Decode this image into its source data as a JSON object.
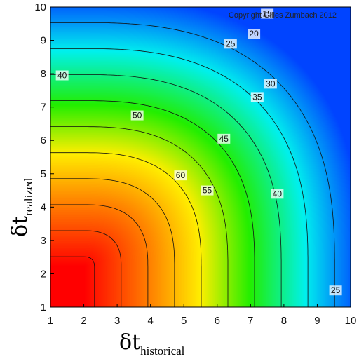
{
  "chart_data": {
    "type": "heatmap",
    "subtype": "filled-contour",
    "x_axis": {
      "label_symbol": "δt",
      "label_subscript": "historical",
      "range": [
        1,
        10
      ],
      "ticks": [
        "1",
        "2",
        "3",
        "4",
        "5",
        "6",
        "7",
        "8",
        "9",
        "10"
      ]
    },
    "y_axis": {
      "label_symbol": "δt",
      "label_subscript": "realized",
      "range": [
        1,
        10
      ],
      "ticks": [
        "1",
        "2",
        "3",
        "4",
        "5",
        "6",
        "7",
        "8",
        "9",
        "10"
      ]
    },
    "annotation": "Copyright Gilles Zumbach 2012",
    "contour_levels": [
      15,
      20,
      25,
      30,
      35,
      40,
      45,
      50,
      55,
      60
    ],
    "contour_labels": [
      {
        "text": "15",
        "x": 7.5,
        "y": 9.8
      },
      {
        "text": "20",
        "x": 7.1,
        "y": 9.2
      },
      {
        "text": "25",
        "x": 6.4,
        "y": 8.9
      },
      {
        "text": "30",
        "x": 7.6,
        "y": 7.7
      },
      {
        "text": "35",
        "x": 7.2,
        "y": 7.3
      },
      {
        "text": "40",
        "x": 1.35,
        "y": 7.95
      },
      {
        "text": "45",
        "x": 6.2,
        "y": 6.05
      },
      {
        "text": "50",
        "x": 3.6,
        "y": 6.75
      },
      {
        "text": "55",
        "x": 5.7,
        "y": 4.5
      },
      {
        "text": "60",
        "x": 4.9,
        "y": 4.95
      },
      {
        "text": "40",
        "x": 7.8,
        "y": 4.4
      },
      {
        "text": "25",
        "x": 9.55,
        "y": 1.5
      }
    ],
    "grid": false,
    "colormap": [
      "#ff0000",
      "#ff8800",
      "#ffee00",
      "#22ee00",
      "#00f0ee",
      "#0044ff"
    ]
  }
}
